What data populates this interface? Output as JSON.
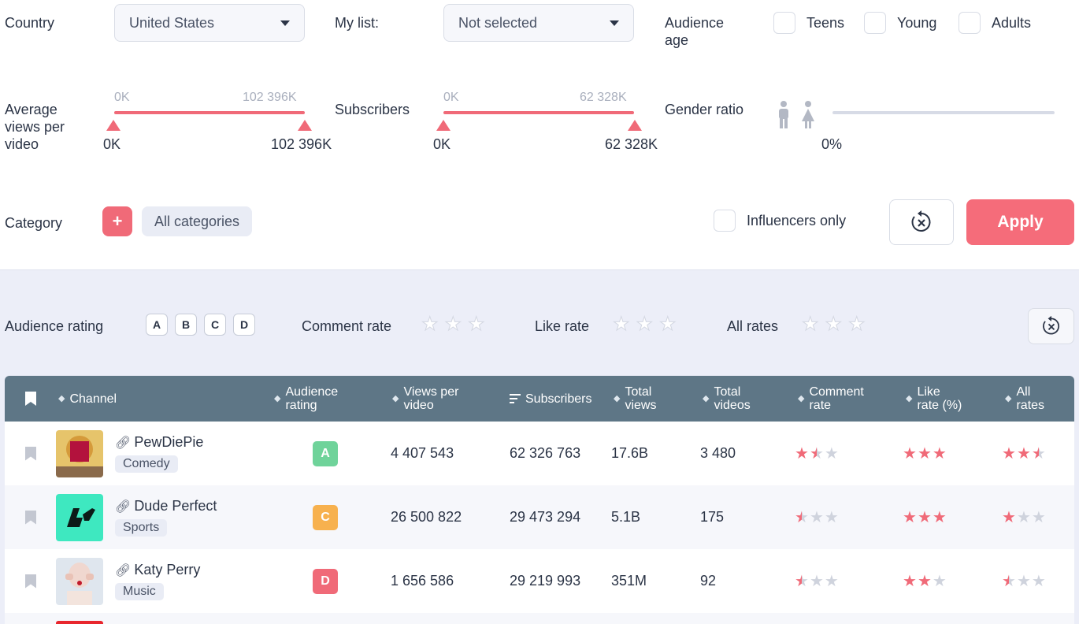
{
  "filters": {
    "country_label": "Country",
    "country_value": "United States",
    "mylist_label": "My list:",
    "mylist_value": "Not selected",
    "audience_age_label_1": "Audience",
    "audience_age_label_2": "age",
    "age_options": [
      "Teens",
      "Young",
      "Adults"
    ],
    "views_label_1": "Average",
    "views_label_2": "views per",
    "views_label_3": "video",
    "views_min_top": "0K",
    "views_max_top": "102 396K",
    "views_min": "0K",
    "views_max": "102 396K",
    "subs_label": "Subscribers",
    "subs_min_top": "0K",
    "subs_max_top": "62 328K",
    "subs_min": "0K",
    "subs_max": "62 328K",
    "gender_label": "Gender ratio",
    "gender_value": "0%",
    "category_label": "Category",
    "category_value": "All categories",
    "influencers_label": "Influencers only",
    "apply_label": "Apply"
  },
  "rating_filters": {
    "audience_rating_label": "Audience rating",
    "letters": [
      "A",
      "B",
      "C",
      "D"
    ],
    "comment_rate_label": "Comment rate",
    "like_rate_label": "Like rate",
    "all_rates_label": "All rates"
  },
  "table": {
    "headers": {
      "channel": "Channel",
      "audience_rating_1": "Audience",
      "audience_rating_2": "rating",
      "views_per_video_1": "Views per",
      "views_per_video_2": "video",
      "subscribers": "Subscribers",
      "total_views_1": "Total",
      "total_views_2": "views",
      "total_videos_1": "Total",
      "total_videos_2": "videos",
      "comment_rate_1": "Comment",
      "comment_rate_2": "rate",
      "like_rate_1": "Like",
      "like_rate_2": "rate (%)",
      "all_rates_1": "All",
      "all_rates_2": "rates"
    },
    "rows": [
      {
        "name": "PewDiePie",
        "category": "Comedy",
        "rating": "A",
        "rating_color": "#6fd39a",
        "views_per_video": "4 407 543",
        "subscribers": "62 326 763",
        "total_views": "17.6B",
        "total_videos": "3 480",
        "comment_stars": 1.5,
        "like_stars": 3,
        "all_stars": 2.5
      },
      {
        "name": "Dude Perfect",
        "category": "Sports",
        "rating": "C",
        "rating_color": "#f7b14e",
        "views_per_video": "26 500 822",
        "subscribers": "29 473 294",
        "total_views": "5.1B",
        "total_videos": "175",
        "comment_stars": 0.5,
        "like_stars": 3,
        "all_stars": 1
      },
      {
        "name": "Katy Perry",
        "category": "Music",
        "rating": "D",
        "rating_color": "#f06a78",
        "views_per_video": "1 656 586",
        "subscribers": "29 219 993",
        "total_views": "351M",
        "total_videos": "92",
        "comment_stars": 0.5,
        "like_stars": 2,
        "all_stars": 0.5
      }
    ]
  }
}
